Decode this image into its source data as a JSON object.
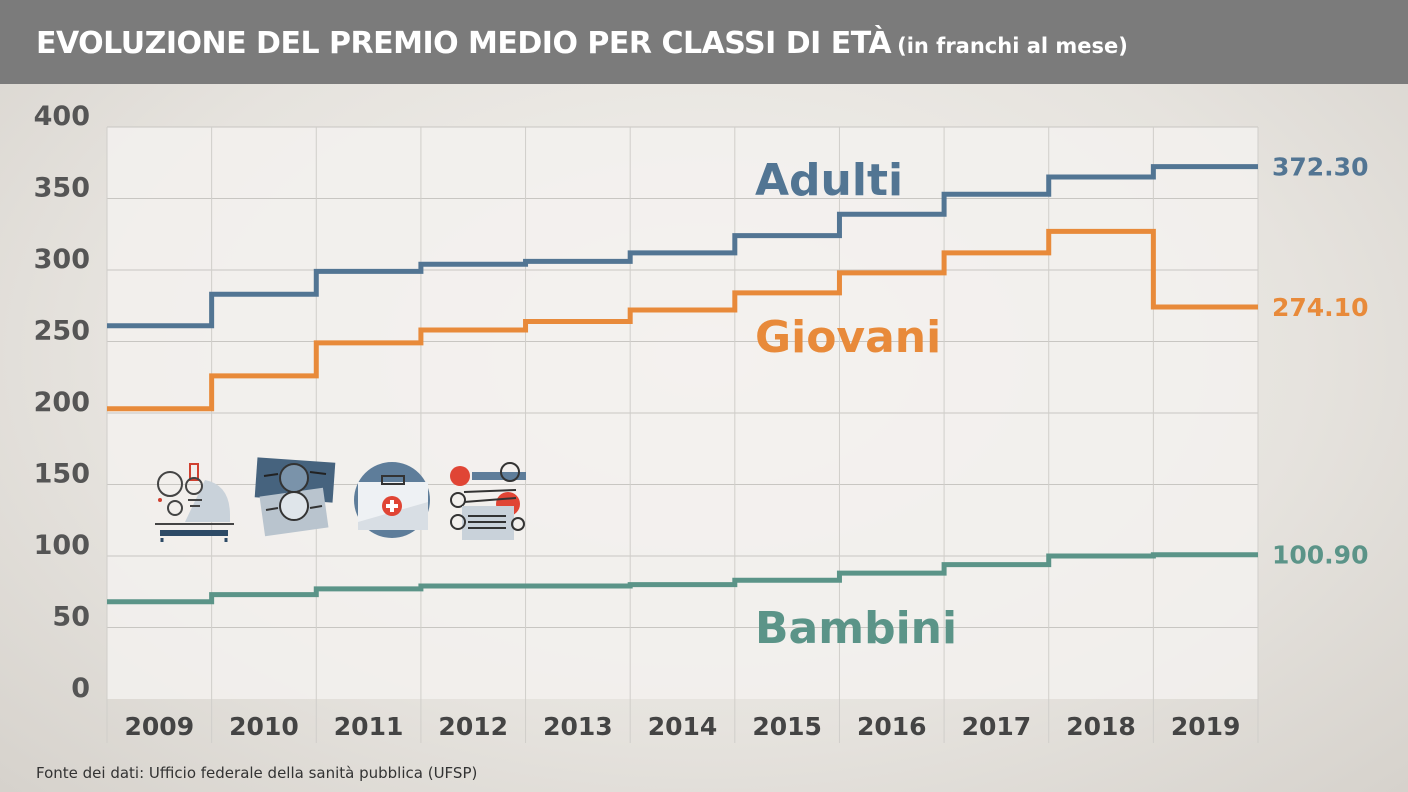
{
  "header": {
    "title": "EVOLUZIONE DEL PREMIO MEDIO PER CLASSI DI ETÀ",
    "subtitle": "(in franchi al mese)"
  },
  "source": "Fonte dei dati: Ufficio federale della sanità pubblica (UFSP)",
  "icons": [
    "microscope-icon",
    "x-ray-film-icon",
    "first-aid-kit-icon",
    "medical-chart-icon"
  ],
  "chart_data": {
    "type": "line",
    "step": true,
    "categories": [
      "2009",
      "2010",
      "2011",
      "2012",
      "2013",
      "2014",
      "2015",
      "2016",
      "2017",
      "2018",
      "2019"
    ],
    "ylim": [
      0,
      400
    ],
    "yticks": [
      0,
      50,
      100,
      150,
      200,
      250,
      300,
      350,
      400
    ],
    "grid": true,
    "series": [
      {
        "name": "Adulti",
        "color": "#527593",
        "values": [
          261,
          283,
          299,
          304,
          306,
          312,
          324,
          339,
          353,
          365,
          372.3
        ],
        "end_label": "372.30"
      },
      {
        "name": "Giovani",
        "color": "#e88a3a",
        "values": [
          203,
          226,
          249,
          258,
          264,
          272,
          284,
          298,
          312,
          327,
          274.1
        ],
        "end_label": "274.10"
      },
      {
        "name": "Bambini",
        "color": "#5b9488",
        "values": [
          68,
          73,
          77,
          79,
          79,
          80,
          83,
          88,
          94,
          100,
          100.9
        ],
        "end_label": "100.90"
      }
    ]
  }
}
